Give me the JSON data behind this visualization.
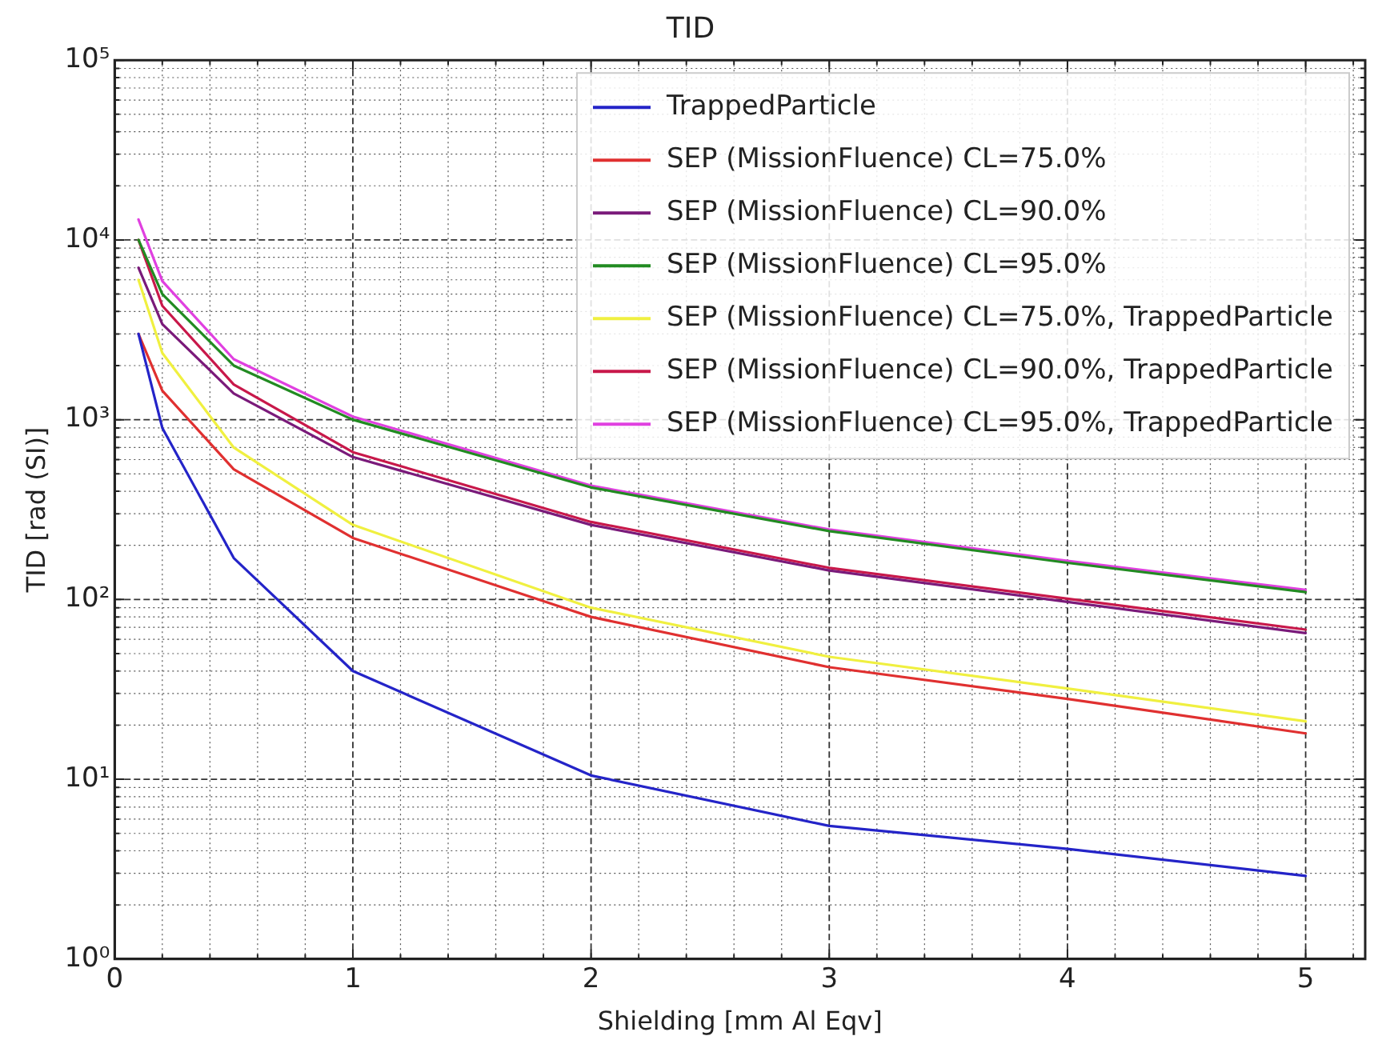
{
  "chart_data": {
    "type": "line",
    "title": "TID",
    "xlabel": "Shielding [mm Al Eqv]",
    "ylabel": "TID [rad (SI)]",
    "x": [
      0.1,
      0.2,
      0.5,
      1,
      2,
      3,
      4,
      5
    ],
    "series": [
      {
        "name": "TrappedParticle",
        "color": "#2424c8",
        "values": [
          3000,
          900,
          170,
          40,
          10.5,
          5.5,
          4.1,
          2.9
        ]
      },
      {
        "name": "SEP (MissionFluence) CL=75.0%",
        "color": "#e03030",
        "values": [
          3000,
          1450,
          530,
          220,
          80,
          42,
          28,
          18
        ]
      },
      {
        "name": "SEP (MissionFluence) CL=90.0%",
        "color": "#7a1a7a",
        "values": [
          7000,
          3400,
          1400,
          620,
          260,
          145,
          97,
          65
        ]
      },
      {
        "name": "SEP (MissionFluence) CL=95.0%",
        "color": "#228b22",
        "values": [
          10000,
          5000,
          2000,
          1000,
          420,
          240,
          160,
          110
        ]
      },
      {
        "name": "SEP (MissionFluence) CL=75.0%, TrappedParticle",
        "color": "#f0f040",
        "values": [
          6000,
          2350,
          700,
          260,
          90,
          48,
          32,
          21
        ]
      },
      {
        "name": "SEP (MissionFluence) CL=90.0%, TrappedParticle",
        "color": "#c8184a",
        "values": [
          10000,
          4300,
          1570,
          660,
          270,
          150,
          101,
          68
        ]
      },
      {
        "name": "SEP (MissionFluence) CL=95.0%, TrappedParticle",
        "color": "#e040e0",
        "values": [
          13000,
          5900,
          2170,
          1040,
          430,
          245,
          164,
          113
        ]
      }
    ],
    "xlim": [
      0,
      5.25
    ],
    "xticks": [
      0,
      {
        "value": 0.2,
        "label": null
      },
      {
        "value": 0.4,
        "label": null
      },
      {
        "value": 0.6,
        "label": null
      },
      {
        "value": 0.8,
        "label": null
      },
      1,
      {
        "value": 1.2,
        "label": null
      },
      {
        "value": 1.4,
        "label": null
      },
      {
        "value": 1.6,
        "label": null
      },
      {
        "value": 1.8,
        "label": null
      },
      2,
      {
        "value": 2.2,
        "label": null
      },
      {
        "value": 2.4,
        "label": null
      },
      {
        "value": 2.6,
        "label": null
      },
      {
        "value": 2.8,
        "label": null
      },
      3,
      {
        "value": 3.2,
        "label": null
      },
      {
        "value": 3.4,
        "label": null
      },
      {
        "value": 3.6,
        "label": null
      },
      {
        "value": 3.8,
        "label": null
      },
      4,
      {
        "value": 4.2,
        "label": null
      },
      {
        "value": 4.4,
        "label": null
      },
      {
        "value": 4.6,
        "label": null
      },
      {
        "value": 4.8,
        "label": null
      },
      5,
      {
        "value": 5.2,
        "label": null
      }
    ],
    "ylim": [
      1,
      100000
    ],
    "yticks": [
      {
        "value": 1,
        "label": "10⁰"
      },
      {
        "value": 2,
        "label": null
      },
      {
        "value": 3,
        "label": null
      },
      {
        "value": 4,
        "label": null
      },
      {
        "value": 5,
        "label": null
      },
      {
        "value": 6,
        "label": null
      },
      {
        "value": 7,
        "label": null
      },
      {
        "value": 8,
        "label": null
      },
      {
        "value": 9,
        "label": null
      },
      {
        "value": 10,
        "label": "10¹"
      },
      {
        "value": 20,
        "label": null
      },
      {
        "value": 30,
        "label": null
      },
      {
        "value": 40,
        "label": null
      },
      {
        "value": 50,
        "label": null
      },
      {
        "value": 60,
        "label": null
      },
      {
        "value": 70,
        "label": null
      },
      {
        "value": 80,
        "label": null
      },
      {
        "value": 90,
        "label": null
      },
      {
        "value": 100,
        "label": "10²"
      },
      {
        "value": 200,
        "label": null
      },
      {
        "value": 300,
        "label": null
      },
      {
        "value": 400,
        "label": null
      },
      {
        "value": 500,
        "label": null
      },
      {
        "value": 600,
        "label": null
      },
      {
        "value": 700,
        "label": null
      },
      {
        "value": 800,
        "label": null
      },
      {
        "value": 900,
        "label": null
      },
      {
        "value": 1000,
        "label": "10³"
      },
      {
        "value": 2000,
        "label": null
      },
      {
        "value": 3000,
        "label": null
      },
      {
        "value": 4000,
        "label": null
      },
      {
        "value": 5000,
        "label": null
      },
      {
        "value": 6000,
        "label": null
      },
      {
        "value": 7000,
        "label": null
      },
      {
        "value": 8000,
        "label": null
      },
      {
        "value": 9000,
        "label": null
      },
      {
        "value": 10000,
        "label": "10⁴"
      },
      {
        "value": 20000,
        "label": null
      },
      {
        "value": 30000,
        "label": null
      },
      {
        "value": 40000,
        "label": null
      },
      {
        "value": 50000,
        "label": null
      },
      {
        "value": 60000,
        "label": null
      },
      {
        "value": 70000,
        "label": null
      },
      {
        "value": 80000,
        "label": null
      },
      {
        "value": 90000,
        "label": null
      },
      {
        "value": 100000,
        "label": "10⁵"
      }
    ],
    "log": "y",
    "grid": true,
    "legend": "top right",
    "line_style": "solid"
  }
}
